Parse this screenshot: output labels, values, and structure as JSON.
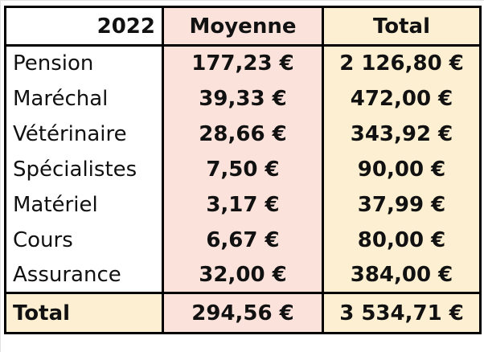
{
  "table": {
    "header": {
      "year": "2022",
      "col_average": "Moyenne",
      "col_total": "Total"
    },
    "rows": [
      {
        "label": "Pension",
        "average": "177,23 €",
        "total": "2 126,80 €"
      },
      {
        "label": "Maréchal",
        "average": "39,33 €",
        "total": "472,00 €"
      },
      {
        "label": "Vétérinaire",
        "average": "28,66 €",
        "total": "343,92 €"
      },
      {
        "label": "Spécialistes",
        "average": "7,50 €",
        "total": "90,00 €"
      },
      {
        "label": "Matériel",
        "average": "3,17 €",
        "total": "37,99 €"
      },
      {
        "label": "Cours",
        "average": "6,67 €",
        "total": "80,00 €"
      },
      {
        "label": "Assurance",
        "average": "32,00 €",
        "total": "384,00 €"
      }
    ],
    "footer": {
      "label": "Total",
      "average": "294,56 €",
      "total": "3 534,71 €"
    }
  },
  "colors": {
    "average_fill": "#fbe3dc",
    "total_fill": "#fdf0d2",
    "border": "#000000"
  }
}
